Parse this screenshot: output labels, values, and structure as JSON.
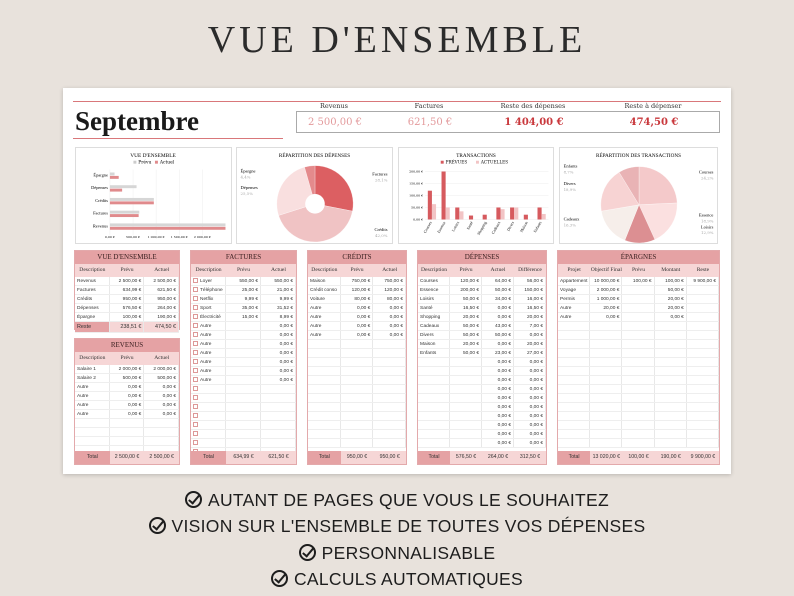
{
  "title": "VUE D'ENSEMBLE",
  "month": "Septembre",
  "kpis": [
    {
      "label": "Revenus",
      "value": "2 500,00 €",
      "color": "#e39a9c"
    },
    {
      "label": "Factures",
      "value": "621,50 €",
      "color": "#e39a9c"
    },
    {
      "label": "Reste des dépenses",
      "value": "1 404,00 €",
      "color": "#c9383c"
    },
    {
      "label": "Reste à dépenser",
      "value": "474,50 €",
      "color": "#c9383c"
    }
  ],
  "colors": {
    "accent": "#e5a2a4",
    "header_light": "#f6d6d6",
    "dark_red": "#d65a5e",
    "light_pink": "#f2c4c5"
  },
  "chart_data": [
    {
      "type": "bar",
      "orientation": "horizontal",
      "title": "VUE D'ENSEMBLE",
      "legend": [
        "Prévu",
        "Actuel"
      ],
      "legend_position": "top",
      "categories": [
        "Épargne",
        "Dépenses",
        "Crédits",
        "Factures",
        "Revenus"
      ],
      "series": [
        {
          "name": "Prévu",
          "values": [
            100,
            576.5,
            950,
            634.99,
            2500
          ]
        },
        {
          "name": "Actuel",
          "values": [
            190,
            264,
            950,
            621.5,
            2500
          ]
        }
      ],
      "xticks": [
        "0,00 €",
        "500,00 €",
        "1 000,00 €",
        "1 500,00 €",
        "2 000,00 €"
      ],
      "xlim": [
        0,
        2500
      ]
    },
    {
      "type": "pie",
      "title": "RÉPARTITION DES DÉPENSES",
      "slices": [
        {
          "label": "Factures",
          "pct": "28,1%",
          "value": 634.99,
          "color": "#dc5f62"
        },
        {
          "label": "Crédits",
          "pct": "42,0%",
          "value": 950,
          "color": "#f0c3c4"
        },
        {
          "label": "Dépenses",
          "pct": "25,5%",
          "value": 576.5,
          "color": "#f9dfdf"
        },
        {
          "label": "Épargne",
          "pct": "4,4%",
          "value": 100,
          "color": "#e48a8c"
        }
      ]
    },
    {
      "type": "bar",
      "title": "TRANSACTIONS",
      "legend": [
        "PRÉVUES",
        "ACTUELLES"
      ],
      "legend_position": "top",
      "categories": [
        "Courses",
        "Essence",
        "Loisirs",
        "Santé",
        "Shopping",
        "Cadeaux",
        "Divers",
        "Maison",
        "Enfants"
      ],
      "series": [
        {
          "name": "PRÉVUES",
          "values": [
            120,
            200,
            50,
            16.5,
            20,
            50,
            50,
            20,
            50
          ]
        },
        {
          "name": "ACTUELLES",
          "values": [
            64,
            50,
            34,
            0,
            0,
            43,
            50,
            0,
            23
          ]
        }
      ],
      "yticks": [
        "0,00 €",
        "50,00 €",
        "100,00 €",
        "150,00 €",
        "200,00 €"
      ],
      "ylim": [
        0,
        200
      ]
    },
    {
      "type": "pie",
      "title": "RÉPARTITION DES TRANSACTIONS",
      "slices": [
        {
          "label": "Courses",
          "pct": "24,2%",
          "value": 64,
          "color": "#f4c9ca"
        },
        {
          "label": "Essence",
          "pct": "18,9%",
          "value": 50,
          "color": "#fbe0e0"
        },
        {
          "label": "Loisirs",
          "pct": "12,9%",
          "value": 34,
          "color": "#dc8f92"
        },
        {
          "label": "Cadeaux",
          "pct": "16,3%",
          "value": 43,
          "color": "#f6eeea"
        },
        {
          "label": "Divers",
          "pct": "18,9%",
          "value": 50,
          "color": "#f7d3d3"
        },
        {
          "label": "Enfants",
          "pct": "8,7%",
          "value": 23,
          "color": "#e9b3b5"
        }
      ]
    }
  ],
  "tables": {
    "overview": {
      "title": "VUE D'ENSEMBLE",
      "headers": [
        "Description",
        "Prévu",
        "Actuel"
      ],
      "rows": [
        [
          "Revenus",
          "2 500,00 €",
          "2 500,00 €"
        ],
        [
          "Factures",
          "634,99 €",
          "621,50 €"
        ],
        [
          "Crédits",
          "950,00 €",
          "950,00 €"
        ],
        [
          "Dépenses",
          "576,50 €",
          "264,00 €"
        ],
        [
          "Épargne",
          "100,00 €",
          "190,00 €"
        ]
      ],
      "total": [
        "Reste",
        "238,51 €",
        "474,50 €"
      ]
    },
    "revenus": {
      "title": "REVENUS",
      "headers": [
        "Description",
        "Prévu",
        "Actuel"
      ],
      "rows": [
        [
          "Salaire 1",
          "2 000,00 €",
          "2 000,00 €"
        ],
        [
          "Salaire 2",
          "500,00 €",
          "500,00 €"
        ],
        [
          "Autre",
          "0,00 €",
          "0,00 €"
        ],
        [
          "Autre",
          "0,00 €",
          "0,00 €"
        ],
        [
          "Autre",
          "0,00 €",
          "0,00 €"
        ],
        [
          "Autre",
          "0,00 €",
          "0,00 €"
        ]
      ],
      "total": [
        "Total",
        "2 500,00 €",
        "2 500,00 €"
      ]
    },
    "factures": {
      "title": "FACTURES",
      "headers": [
        "Description",
        "Prévu",
        "Actuel"
      ],
      "rows": [
        [
          "Loyer",
          "550,00 €",
          "550,00 €"
        ],
        [
          "Téléphone",
          "25,00 €",
          "21,00 €"
        ],
        [
          "Netflix",
          "9,99 €",
          "9,99 €"
        ],
        [
          "Sport",
          "35,00 €",
          "31,52 €"
        ],
        [
          "Électricité",
          "15,00 €",
          "8,99 €"
        ],
        [
          "Autre",
          "",
          "0,00 €"
        ],
        [
          "Autre",
          "",
          "0,00 €"
        ],
        [
          "Autre",
          "",
          "0,00 €"
        ],
        [
          "Autre",
          "",
          "0,00 €"
        ],
        [
          "Autre",
          "",
          "0,00 €"
        ],
        [
          "Autre",
          "",
          "0,00 €"
        ],
        [
          "Autre",
          "",
          "0,00 €"
        ]
      ],
      "total": [
        "Total",
        "634,99 €",
        "621,50 €"
      ]
    },
    "credits": {
      "title": "CRÉDITS",
      "headers": [
        "Description",
        "Prévu",
        "Actuel"
      ],
      "rows": [
        [
          "Maison",
          "750,00 €",
          "750,00 €"
        ],
        [
          "Crédit conso",
          "120,00 €",
          "120,00 €"
        ],
        [
          "Voiture",
          "80,00 €",
          "80,00 €"
        ],
        [
          "Autre",
          "0,00 €",
          "0,00 €"
        ],
        [
          "Autre",
          "0,00 €",
          "0,00 €"
        ],
        [
          "Autre",
          "0,00 €",
          "0,00 €"
        ],
        [
          "Autre",
          "0,00 €",
          "0,00 €"
        ]
      ],
      "total": [
        "Total",
        "950,00 €",
        "950,00 €"
      ]
    },
    "depenses": {
      "title": "DÉPENSES",
      "headers": [
        "Description",
        "Prévu",
        "Actuel",
        "Différence"
      ],
      "rows": [
        [
          "Courses",
          "120,00 €",
          "64,00 €",
          "56,00 €"
        ],
        [
          "Essence",
          "200,00 €",
          "50,00 €",
          "150,00 €"
        ],
        [
          "Loisirs",
          "50,00 €",
          "34,00 €",
          "16,00 €"
        ],
        [
          "Santé",
          "16,50 €",
          "0,00 €",
          "16,50 €"
        ],
        [
          "Shopping",
          "20,00 €",
          "0,00 €",
          "20,00 €"
        ],
        [
          "Cadeaux",
          "50,00 €",
          "43,00 €",
          "7,00 €"
        ],
        [
          "Divers",
          "50,00 €",
          "50,00 €",
          "0,00 €"
        ],
        [
          "Maison",
          "20,00 €",
          "0,00 €",
          "20,00 €"
        ],
        [
          "Enfants",
          "50,00 €",
          "23,00 €",
          "27,00 €"
        ],
        [
          "",
          "",
          "0,00 €",
          "0,00 €"
        ],
        [
          "",
          "",
          "0,00 €",
          "0,00 €"
        ],
        [
          "",
          "",
          "0,00 €",
          "0,00 €"
        ],
        [
          "",
          "",
          "0,00 €",
          "0,00 €"
        ],
        [
          "",
          "",
          "0,00 €",
          "0,00 €"
        ],
        [
          "",
          "",
          "0,00 €",
          "0,00 €"
        ],
        [
          "",
          "",
          "0,00 €",
          "0,00 €"
        ],
        [
          "",
          "",
          "0,00 €",
          "0,00 €"
        ],
        [
          "",
          "",
          "0,00 €",
          "0,00 €"
        ],
        [
          "",
          "",
          "0,00 €",
          "0,00 €"
        ]
      ],
      "total": [
        "Total",
        "576,50 €",
        "264,00 €",
        "312,50 €"
      ]
    },
    "epargnes": {
      "title": "ÉPARGNES",
      "headers": [
        "Projet",
        "Objectif Final",
        "Prévu",
        "Montant",
        "Reste"
      ],
      "rows": [
        [
          "Appartement",
          "10 000,00 €",
          "100,00 €",
          "100,00 €",
          "9 900,00 €"
        ],
        [
          "Voyage",
          "2 000,00 €",
          "",
          "50,00 €",
          ""
        ],
        [
          "Permis",
          "1 000,00 €",
          "",
          "20,00 €",
          ""
        ],
        [
          "Autre",
          "20,00 €",
          "",
          "20,00 €",
          ""
        ],
        [
          "Autre",
          "0,00 €",
          "",
          "0,00 €",
          ""
        ]
      ],
      "total": [
        "Total",
        "13 020,00 €",
        "100,00 €",
        "190,00 €",
        "9 900,00 €"
      ]
    }
  },
  "features": [
    "AUTANT DE PAGES QUE VOUS LE SOUHAITEZ",
    "VISION SUR L'ENSEMBLE DE TOUTES VOS DÉPENSES",
    "PERSONNALISABLE",
    "CALCULS AUTOMATIQUES"
  ]
}
